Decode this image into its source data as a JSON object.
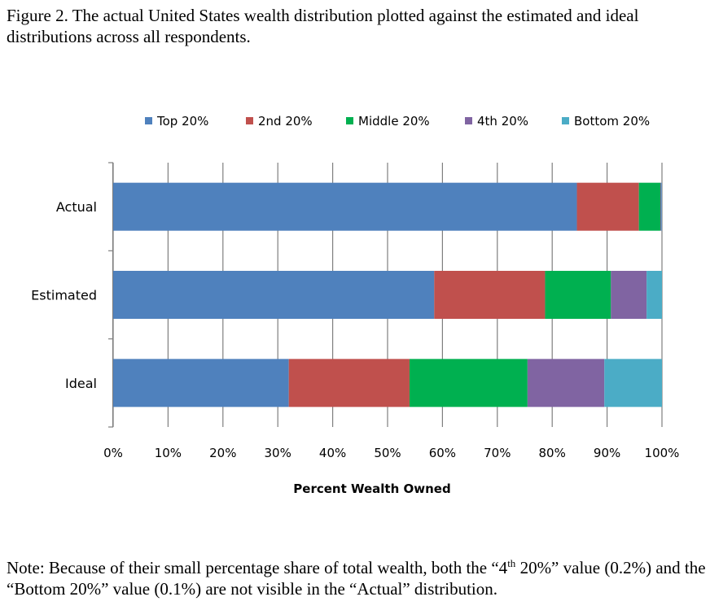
{
  "caption": "Figure 2. The actual United States wealth distribution plotted against the estimated and ideal distributions across all respondents.",
  "note": {
    "part1": "Note: Because of their small percentage share of total wealth, both the “4",
    "sup": "th",
    "part2": " 20%” value (0.2%) and the “Bottom 20%” value (0.1%) are not visible in the “Actual” distribution."
  },
  "chart_data": {
    "type": "bar",
    "orientation": "horizontal",
    "stacked": true,
    "categories": [
      "Actual",
      "Estimated",
      "Ideal"
    ],
    "series": [
      {
        "name": "Top 20%",
        "color": "#4F81BD",
        "values": [
          84.5,
          58.5,
          32.0
        ]
      },
      {
        "name": "2nd 20%",
        "color": "#C0504D",
        "values": [
          11.3,
          20.2,
          22.0
        ]
      },
      {
        "name": "Middle 20%",
        "color": "#00B050",
        "values": [
          3.9,
          12.0,
          21.5
        ]
      },
      {
        "name": "4th 20%",
        "color": "#8064A2",
        "values": [
          0.2,
          6.5,
          14.0
        ]
      },
      {
        "name": "Bottom 20%",
        "color": "#4BACC6",
        "values": [
          0.1,
          2.8,
          10.5
        ]
      }
    ],
    "xlabel": "Percent Wealth Owned",
    "xlim": [
      0,
      100
    ],
    "xticks": [
      "0%",
      "10%",
      "20%",
      "30%",
      "40%",
      "50%",
      "60%",
      "70%",
      "80%",
      "90%",
      "100%"
    ],
    "grid": true,
    "legend_position": "top"
  }
}
